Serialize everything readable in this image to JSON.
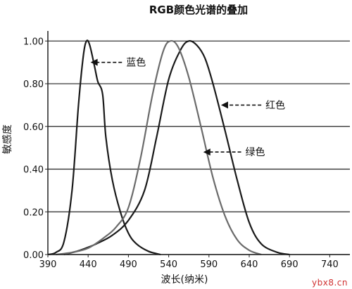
{
  "chart_data": {
    "type": "line",
    "title": "RGB颜色光谱的叠加",
    "xlabel": "波长(纳米)",
    "ylabel": "敏感度",
    "xlim": [
      390,
      765
    ],
    "ylim": [
      0,
      1.0
    ],
    "x_ticks": [
      "390",
      "440",
      "490",
      "540",
      "590",
      "640",
      "690",
      "740"
    ],
    "y_ticks": [
      "0.00",
      "0.20",
      "0.40",
      "0.60",
      "0.80",
      "1.00"
    ],
    "grid": "horizontal",
    "series": [
      {
        "name": "蓝色",
        "color": "#1a1a1a",
        "points": [
          [
            390,
            0
          ],
          [
            400,
            0.01
          ],
          [
            410,
            0.06
          ],
          [
            420,
            0.3
          ],
          [
            428,
            0.7
          ],
          [
            434,
            0.93
          ],
          [
            438,
            1.0
          ],
          [
            442,
            0.98
          ],
          [
            448,
            0.88
          ],
          [
            452,
            0.81
          ],
          [
            458,
            0.75
          ],
          [
            462,
            0.55
          ],
          [
            470,
            0.35
          ],
          [
            480,
            0.2
          ],
          [
            490,
            0.1
          ],
          [
            500,
            0.05
          ],
          [
            515,
            0.015
          ],
          [
            530,
            0
          ]
        ]
      },
      {
        "name": "红色",
        "color": "#1a1a1a",
        "points": [
          [
            410,
            0
          ],
          [
            430,
            0.02
          ],
          [
            450,
            0.05
          ],
          [
            470,
            0.09
          ],
          [
            490,
            0.16
          ],
          [
            510,
            0.3
          ],
          [
            525,
            0.55
          ],
          [
            540,
            0.82
          ],
          [
            555,
            0.96
          ],
          [
            565,
            1.0
          ],
          [
            575,
            0.98
          ],
          [
            585,
            0.92
          ],
          [
            595,
            0.8
          ],
          [
            610,
            0.58
          ],
          [
            625,
            0.35
          ],
          [
            640,
            0.15
          ],
          [
            655,
            0.05
          ],
          [
            675,
            0.01
          ],
          [
            690,
            0
          ]
        ]
      },
      {
        "name": "绿色",
        "color": "#6b6b6b",
        "points": [
          [
            400,
            0
          ],
          [
            420,
            0.01
          ],
          [
            440,
            0.03
          ],
          [
            460,
            0.08
          ],
          [
            475,
            0.13
          ],
          [
            490,
            0.22
          ],
          [
            505,
            0.45
          ],
          [
            520,
            0.75
          ],
          [
            533,
            0.95
          ],
          [
            542,
            1.0
          ],
          [
            552,
            0.97
          ],
          [
            565,
            0.83
          ],
          [
            580,
            0.6
          ],
          [
            595,
            0.36
          ],
          [
            610,
            0.18
          ],
          [
            625,
            0.07
          ],
          [
            640,
            0.02
          ],
          [
            655,
            0
          ]
        ]
      }
    ],
    "annotations": [
      {
        "text": "蓝色",
        "arrow_from_x": 482,
        "arrow_to_x": 443,
        "y": 0.9
      },
      {
        "text": "红色",
        "arrow_from_x": 655,
        "arrow_to_x": 605,
        "y": 0.7
      },
      {
        "text": "绿色",
        "arrow_from_x": 630,
        "arrow_to_x": 583,
        "y": 0.48
      }
    ]
  },
  "watermark": "ybx8.cn"
}
